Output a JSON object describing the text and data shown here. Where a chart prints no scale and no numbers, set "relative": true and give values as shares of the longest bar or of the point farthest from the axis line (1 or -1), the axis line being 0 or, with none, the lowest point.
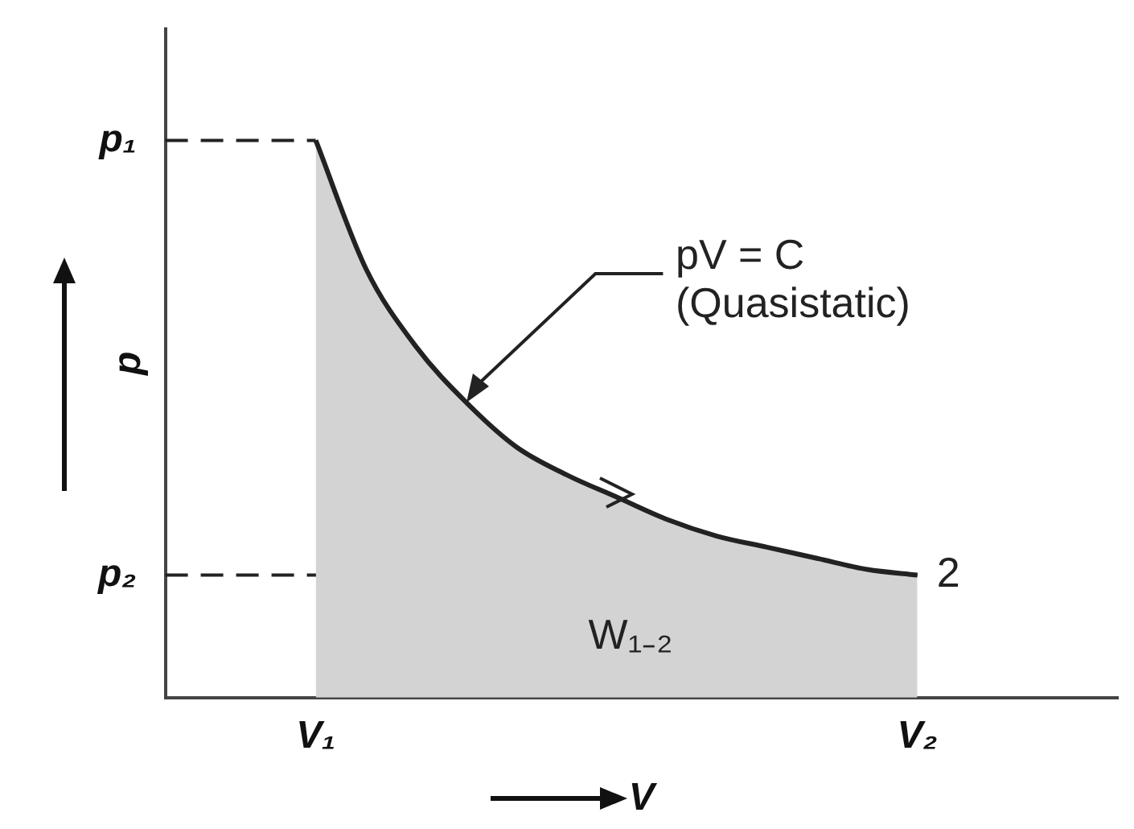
{
  "chart_data": {
    "type": "area",
    "relative": true,
    "xlabel": "V",
    "ylabel": "p",
    "categories": [
      null,
      null,
      null,
      "V₁",
      null,
      null,
      null,
      null,
      null,
      null,
      null,
      null,
      null,
      null,
      null,
      "V₂",
      null,
      null,
      null,
      null
    ],
    "series": [
      {
        "color": "#222222",
        "values": [
          null,
          null,
          null,
          1,
          0.77,
          0.63,
          0.53,
          0.45,
          0.4,
          0.36,
          0.32,
          0.29,
          0.27,
          0.25,
          0.23,
          0.22,
          null,
          null,
          null,
          null
        ]
      }
    ],
    "ref_lines": [
      {
        "axis": "y",
        "value": 1,
        "label": "p₁",
        "line_style": "dashed",
        "color": "#222222"
      },
      {
        "axis": "y",
        "value": 0.22,
        "label": "p₂",
        "line_style": "dashed",
        "color": "#222222"
      }
    ],
    "annotations": [
      "pV = C\n(Quasistatic)",
      "W₁₋₂",
      {
        "text": "2",
        "x": "V₂",
        "y": 0.22
      }
    ],
    "grid": false,
    "legend": false,
    "marker": "none",
    "line_style": "solid"
  }
}
